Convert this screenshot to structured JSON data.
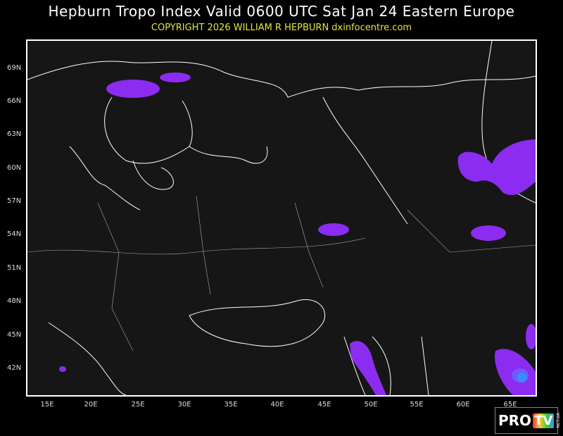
{
  "header": {
    "title": "Hepburn Tropo Index Valid 0600 UTC Sat Jan 24 Eastern Europe",
    "copyright": "COPYRIGHT 2026   WILLIAM R HEPBURN   dxinfocentre.com"
  },
  "map": {
    "lat_labels": [
      "69N",
      "66N",
      "63N",
      "60N",
      "57N",
      "54N",
      "51N",
      "48N",
      "45N",
      "42N"
    ],
    "lon_labels": [
      "15E",
      "20E",
      "25E",
      "30E",
      "35E",
      "40E",
      "45E",
      "50E",
      "55E",
      "60E",
      "65E"
    ],
    "colors": {
      "background": "#161616",
      "border": "#ffffff",
      "index_purple": "#8c2cf0",
      "index_blue": "#3a8cff",
      "index_lightpurple": "#6e5cff"
    }
  },
  "watermark": {
    "brand": "PROTV",
    "sub": "NET.UA"
  }
}
